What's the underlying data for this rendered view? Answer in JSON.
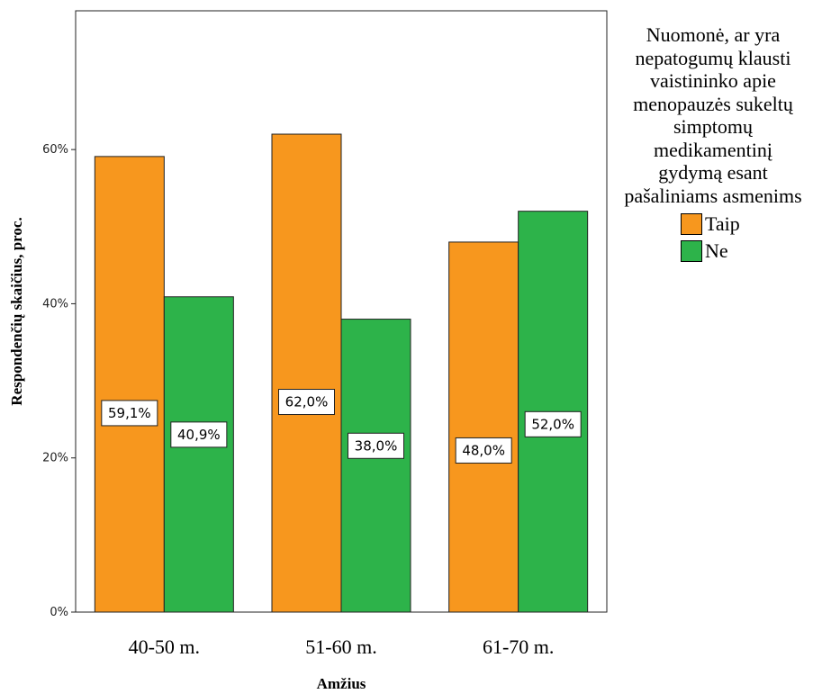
{
  "chart_data": {
    "type": "bar",
    "categories": [
      "40-50 m.",
      "51-60 m.",
      "61-70 m."
    ],
    "series": [
      {
        "name": "Taip",
        "values": [
          59.1,
          62.0,
          48.0
        ],
        "labels": [
          "59,1%",
          "62,0%",
          "48,0%"
        ],
        "color": "#f7971e"
      },
      {
        "name": "Ne",
        "values": [
          40.9,
          38.0,
          52.0
        ],
        "labels": [
          "40,9%",
          "38,0%",
          "52,0%"
        ],
        "color": "#2db34a"
      }
    ],
    "xlabel": "Amžius",
    "ylabel": "Respondenčių skaičius, proc.",
    "ylim": [
      0,
      78
    ],
    "yticks": [
      {
        "value": 0,
        "label": "0%"
      },
      {
        "value": 20,
        "label": "20%"
      },
      {
        "value": 40,
        "label": "40%"
      },
      {
        "value": 60,
        "label": "60%"
      }
    ],
    "grid": false,
    "legend": {
      "title": "Nuomonė, ar yra nepatogumų klausti vaistininko apie menopauzės sukeltų simptomų medikamentinį gydymą esant pašaliniams asmenims",
      "position": "right"
    }
  }
}
